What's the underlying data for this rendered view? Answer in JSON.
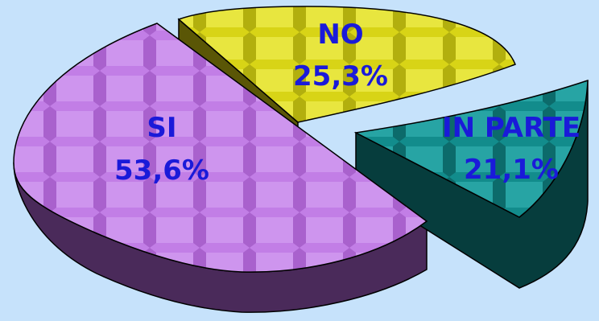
{
  "chart_data": {
    "type": "pie",
    "title": "",
    "categories": [
      "SI",
      "NO",
      "IN PARTE"
    ],
    "values": [
      53.6,
      25.3,
      21.1
    ],
    "value_labels": [
      "53,6%",
      "25,3%",
      "21,1%"
    ],
    "unit": "%",
    "three_d": true,
    "exploded": [
      "IN PARTE"
    ],
    "colors": {
      "SI": "#c07ce8",
      "NO": "#e8e41a",
      "IN PARTE": "#1a9a9a"
    },
    "legend": "none"
  },
  "colors": {
    "background": "#c6e2fb",
    "label_text": "#1a1ad9"
  }
}
